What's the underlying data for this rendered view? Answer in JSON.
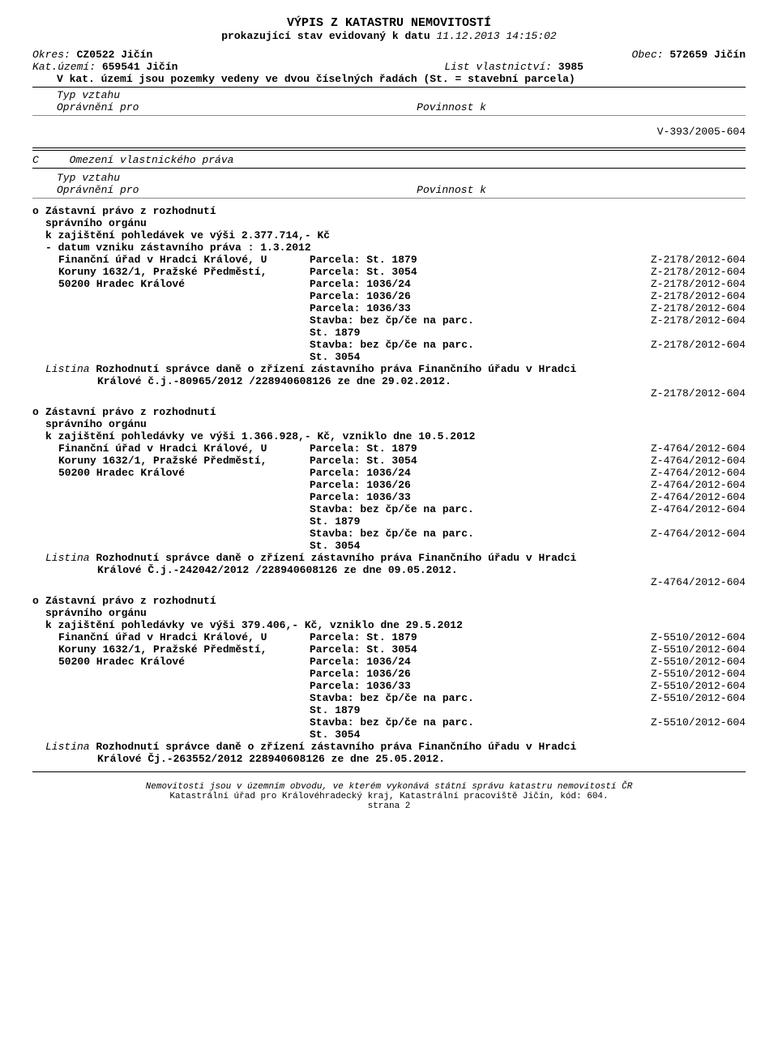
{
  "title": "VÝPIS Z KATASTRU NEMOVITOSTÍ",
  "subtitle_bold": "prokazující stav evidovaný k datu ",
  "subtitle_italic": "11.12.2013 14:15:02",
  "header": {
    "okres_label": "Okres:",
    "okres_value": "CZ0522 Jičín",
    "obec_label": "Obec:",
    "obec_value": "572659 Jičín",
    "katuzemi_label": "Kat.území:",
    "katuzemi_value": "659541 Jičín",
    "listvlast_label": "List vlastnictví:",
    "listvlast_value": "3985",
    "vkat": "V kat. území jsou pozemky vedeny ve dvou číselných řadách  (St. = stavební parcela)"
  },
  "typvztahu": "Typ vztahu",
  "opravneni": "Oprávnění pro",
  "povinnost": "Povinnost k",
  "v393": "V-393/2005-604",
  "sectionC_label": "C",
  "sectionC_title": "Omezení vlastnického práva",
  "entries": [
    {
      "marker": "o",
      "heading": "Zástavní právo z rozhodnutí",
      "heading2": "správního orgánu",
      "line1": "k zajištění pohledávek ve výši 2.377.714,- Kč",
      "line2": "- datum vzniku zástavního práva : 1.3.2012",
      "creditor": [
        "Finanční úřad v Hradci Králové, U",
        "Koruny 1632/1, Pražské Předměstí,",
        "50200 Hradec Králové"
      ],
      "parcels": [
        {
          "p": "Parcela: St. 1879",
          "z": "Z-2178/2012-604"
        },
        {
          "p": "Parcela: St. 3054",
          "z": "Z-2178/2012-604"
        },
        {
          "p": "Parcela:  1036/24",
          "z": "Z-2178/2012-604"
        },
        {
          "p": "Parcela:  1036/26",
          "z": "Z-2178/2012-604"
        },
        {
          "p": "Parcela:  1036/33",
          "z": "Z-2178/2012-604"
        },
        {
          "p": "Stavba: bez čp/če na parc.",
          "z": "Z-2178/2012-604"
        },
        {
          "p": "St. 1879",
          "z": ""
        },
        {
          "p": "Stavba: bez čp/če na parc.",
          "z": "Z-2178/2012-604"
        },
        {
          "p": "St. 3054",
          "z": ""
        }
      ],
      "listina_label": "Listina",
      "listina1": "Rozhodnutí správce daně o zřízení zástavního práva Finančního úřadu v Hradci",
      "listina2": "Králové č.j.-80965/2012 /228940608126 ze dne 29.02.2012.",
      "zcode": "Z-2178/2012-604"
    },
    {
      "marker": "o",
      "heading": "Zástavní právo z rozhodnutí",
      "heading2": "správního orgánu",
      "line1": "k zajištění pohledávky ve výši 1.366.928,- Kč, vzniklo dne 10.5.2012",
      "line2": "",
      "creditor": [
        "Finanční úřad v Hradci Králové, U",
        "Koruny 1632/1, Pražské Předměstí,",
        "50200 Hradec Králové"
      ],
      "parcels": [
        {
          "p": "Parcela: St. 1879",
          "z": "Z-4764/2012-604"
        },
        {
          "p": "Parcela: St. 3054",
          "z": "Z-4764/2012-604"
        },
        {
          "p": "Parcela:  1036/24",
          "z": "Z-4764/2012-604"
        },
        {
          "p": "Parcela:  1036/26",
          "z": "Z-4764/2012-604"
        },
        {
          "p": "Parcela:  1036/33",
          "z": "Z-4764/2012-604"
        },
        {
          "p": "Stavba: bez čp/če na parc.",
          "z": "Z-4764/2012-604"
        },
        {
          "p": "St. 1879",
          "z": ""
        },
        {
          "p": "Stavba: bez čp/če na parc.",
          "z": "Z-4764/2012-604"
        },
        {
          "p": "St. 3054",
          "z": ""
        }
      ],
      "listina_label": "Listina",
      "listina1": "Rozhodnutí správce daně o zřízení zástavního práva Finančního úřadu v Hradci",
      "listina2": "Králové Č.j.-242042/2012 /228940608126 ze dne 09.05.2012.",
      "zcode": "Z-4764/2012-604"
    },
    {
      "marker": "o",
      "heading": "Zástavní právo z rozhodnutí",
      "heading2": "správního orgánu",
      "line1": "k zajištění pohledávky ve výši 379.406,- Kč, vzniklo dne 29.5.2012",
      "line2": "",
      "creditor": [
        "Finanční úřad v Hradci Králové, U",
        "Koruny 1632/1, Pražské Předměstí,",
        "50200 Hradec Králové"
      ],
      "parcels": [
        {
          "p": "Parcela: St. 1879",
          "z": "Z-5510/2012-604"
        },
        {
          "p": "Parcela: St. 3054",
          "z": "Z-5510/2012-604"
        },
        {
          "p": "Parcela:  1036/24",
          "z": "Z-5510/2012-604"
        },
        {
          "p": "Parcela:  1036/26",
          "z": "Z-5510/2012-604"
        },
        {
          "p": "Parcela:  1036/33",
          "z": "Z-5510/2012-604"
        },
        {
          "p": "Stavba: bez čp/če na parc.",
          "z": "Z-5510/2012-604"
        },
        {
          "p": "St. 1879",
          "z": ""
        },
        {
          "p": "Stavba: bez čp/če na parc.",
          "z": "Z-5510/2012-604"
        },
        {
          "p": "St. 3054",
          "z": ""
        }
      ],
      "listina_label": "Listina",
      "listina1": "Rozhodnutí správce daně o zřízení zástavního práva Finančního úřadu v Hradci",
      "listina2": "Králové Čj.-263552/2012 228940608126 ze dne 25.05.2012.",
      "zcode": ""
    }
  ],
  "footer1": "Nemovitosti jsou v územním obvodu, ve kterém vykonává státní správu katastru nemovitostí ČR",
  "footer2": "Katastrální úřad pro Královéhradecký kraj, Katastrální pracoviště Jičín, kód: 604.",
  "page": "strana 2"
}
